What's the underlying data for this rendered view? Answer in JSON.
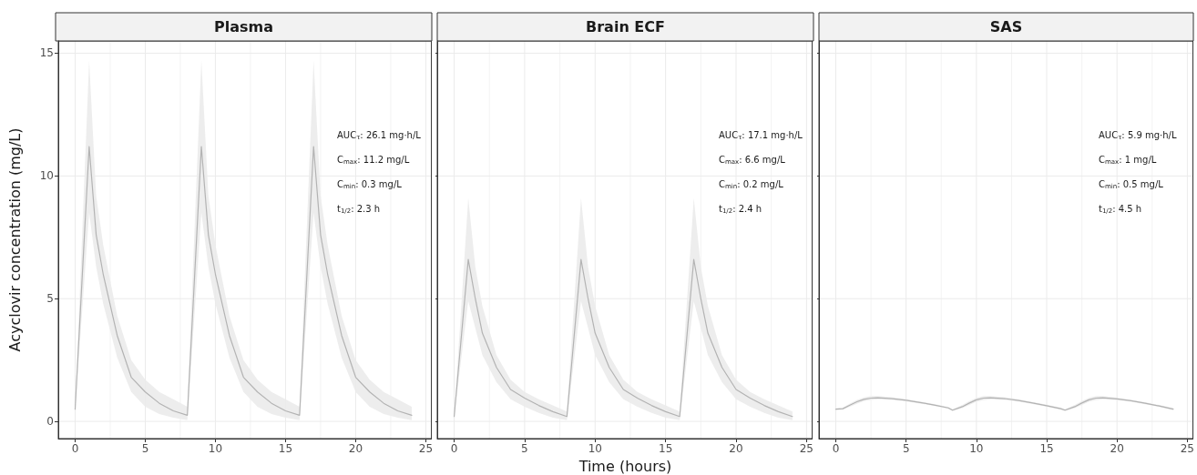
{
  "chart_data": [
    {
      "type": "line",
      "title": "Plasma",
      "ylabel": "Acyclovir concentration (mg/L)",
      "xlim": [
        -1.2,
        25.4
      ],
      "xticks": [
        0,
        5,
        10,
        15,
        20,
        25
      ],
      "ylim": [
        -0.7,
        15.5
      ],
      "yticks": [
        0,
        5,
        10,
        15
      ],
      "grid": true,
      "marker": "none",
      "line_style": "solid",
      "tick_labels": "xy",
      "annotations": [
        "AUC$_{τ}$: 26.1 mg·h/L",
        "C$_{max}$: 11.2 mg/L",
        "C$_{min}$: 0.3 mg/L",
        "t$_{1/2}$: 2.3 h"
      ],
      "series": [
        {
          "color": "#b3b3b3",
          "x": [
            0,
            1,
            1.5,
            2,
            3,
            4,
            5,
            6,
            7,
            8,
            9,
            9.5,
            10,
            11,
            12,
            13,
            14,
            15,
            16,
            17,
            17.5,
            18,
            19,
            20,
            21,
            22,
            23,
            24
          ],
          "values": [
            0.5,
            11.2,
            7.6,
            6.0,
            3.5,
            1.8,
            1.2,
            0.74,
            0.43,
            0.25,
            11.2,
            7.6,
            6.0,
            3.5,
            1.8,
            1.2,
            0.74,
            0.43,
            0.25,
            11.2,
            7.6,
            6.0,
            3.5,
            1.8,
            1.2,
            0.74,
            0.43,
            0.25
          ],
          "lower": [
            0.5,
            8.5,
            6.3,
            4.8,
            2.6,
            1.2,
            0.6,
            0.3,
            0.15,
            0.05,
            8.5,
            6.3,
            4.8,
            2.6,
            1.2,
            0.6,
            0.3,
            0.15,
            0.05,
            8.5,
            6.3,
            4.8,
            2.6,
            1.2,
            0.6,
            0.3,
            0.15,
            0.05
          ],
          "upper": [
            0.5,
            14.7,
            9.2,
            7.2,
            4.3,
            2.5,
            1.7,
            1.2,
            0.9,
            0.6,
            14.7,
            9.2,
            7.2,
            4.3,
            2.5,
            1.7,
            1.2,
            0.9,
            0.6,
            14.7,
            9.2,
            7.2,
            4.3,
            2.5,
            1.7,
            1.2,
            0.9,
            0.6
          ]
        }
      ]
    },
    {
      "type": "line",
      "title": "Brain ECF",
      "xlabel": "Time (hours)",
      "xlim": [
        -1.2,
        25.4
      ],
      "xticks": [
        0,
        5,
        10,
        15,
        20,
        25
      ],
      "ylim": [
        -0.7,
        15.5
      ],
      "yticks": [
        0,
        5,
        10,
        15
      ],
      "grid": true,
      "marker": "none",
      "line_style": "solid",
      "tick_labels": "x",
      "annotations": [
        "AUC$_{τ}$: 17.1 mg·h/L",
        "C$_{max}$: 6.6 mg/L",
        "C$_{min}$: 0.2 mg/L",
        "t$_{1/2}$: 2.4 h"
      ],
      "series": [
        {
          "color": "#b3b3b3",
          "x": [
            0,
            1,
            1.5,
            2,
            3,
            4,
            5,
            6,
            7,
            8,
            9,
            9.5,
            10,
            11,
            12,
            13,
            14,
            15,
            16,
            17,
            17.5,
            18,
            19,
            20,
            21,
            22,
            23,
            24
          ],
          "values": [
            0.2,
            6.6,
            5.0,
            3.6,
            2.2,
            1.3,
            0.95,
            0.65,
            0.4,
            0.2,
            6.6,
            5.0,
            3.6,
            2.2,
            1.3,
            0.95,
            0.65,
            0.4,
            0.2,
            6.6,
            5.0,
            3.6,
            2.2,
            1.3,
            0.95,
            0.65,
            0.4,
            0.2
          ],
          "lower": [
            0.2,
            4.9,
            3.8,
            2.7,
            1.6,
            0.9,
            0.6,
            0.35,
            0.15,
            0.05,
            4.9,
            3.8,
            2.7,
            1.6,
            0.9,
            0.6,
            0.35,
            0.15,
            0.05,
            4.9,
            3.8,
            2.7,
            1.6,
            0.9,
            0.6,
            0.35,
            0.15,
            0.05
          ],
          "upper": [
            0.2,
            9.1,
            6.3,
            4.7,
            2.7,
            1.7,
            1.2,
            0.9,
            0.65,
            0.4,
            9.1,
            6.3,
            4.7,
            2.7,
            1.7,
            1.2,
            0.9,
            0.65,
            0.4,
            9.1,
            6.3,
            4.7,
            2.7,
            1.7,
            1.2,
            0.9,
            0.65,
            0.4
          ]
        }
      ]
    },
    {
      "type": "line",
      "title": "SAS",
      "xlim": [
        -1.2,
        25.4
      ],
      "xticks": [
        0,
        5,
        10,
        15,
        20,
        25
      ],
      "ylim": [
        -0.7,
        15.5
      ],
      "yticks": [
        0,
        5,
        10,
        15
      ],
      "grid": true,
      "marker": "none",
      "line_style": "solid",
      "tick_labels": "x",
      "annotations": [
        "AUC$_{τ}$: 5.9 mg·h/L",
        "C$_{max}$: 1 mg/L",
        "C$_{min}$: 0.5 mg/L",
        "t$_{1/2}$: 4.5 h"
      ],
      "series": [
        {
          "color": "#b3b3b3",
          "x": [
            0,
            0.5,
            1,
            1.5,
            2,
            2.5,
            3,
            4,
            5,
            6,
            7,
            8,
            8.3,
            9,
            9.5,
            10,
            10.5,
            11,
            12,
            13,
            14,
            15,
            16,
            16.3,
            17,
            17.5,
            18,
            18.5,
            19,
            20,
            21,
            22,
            23,
            24
          ],
          "values": [
            0.5,
            0.52,
            0.66,
            0.8,
            0.9,
            0.95,
            0.96,
            0.93,
            0.86,
            0.77,
            0.67,
            0.55,
            0.46,
            0.6,
            0.75,
            0.88,
            0.95,
            0.96,
            0.93,
            0.85,
            0.75,
            0.64,
            0.52,
            0.46,
            0.6,
            0.75,
            0.88,
            0.95,
            0.96,
            0.92,
            0.84,
            0.74,
            0.63,
            0.5
          ],
          "lower": [
            0.47,
            0.48,
            0.6,
            0.72,
            0.83,
            0.88,
            0.9,
            0.88,
            0.82,
            0.73,
            0.63,
            0.51,
            0.42,
            0.54,
            0.67,
            0.8,
            0.87,
            0.9,
            0.88,
            0.81,
            0.71,
            0.6,
            0.48,
            0.42,
            0.54,
            0.67,
            0.8,
            0.87,
            0.9,
            0.87,
            0.8,
            0.7,
            0.59,
            0.46
          ],
          "upper": [
            0.53,
            0.56,
            0.73,
            0.88,
            0.98,
            1.03,
            1.03,
            0.99,
            0.91,
            0.81,
            0.71,
            0.59,
            0.5,
            0.67,
            0.83,
            0.96,
            1.03,
            1.03,
            0.99,
            0.9,
            0.79,
            0.68,
            0.56,
            0.5,
            0.67,
            0.83,
            0.96,
            1.03,
            1.03,
            0.97,
            0.88,
            0.78,
            0.67,
            0.54
          ]
        }
      ]
    }
  ]
}
